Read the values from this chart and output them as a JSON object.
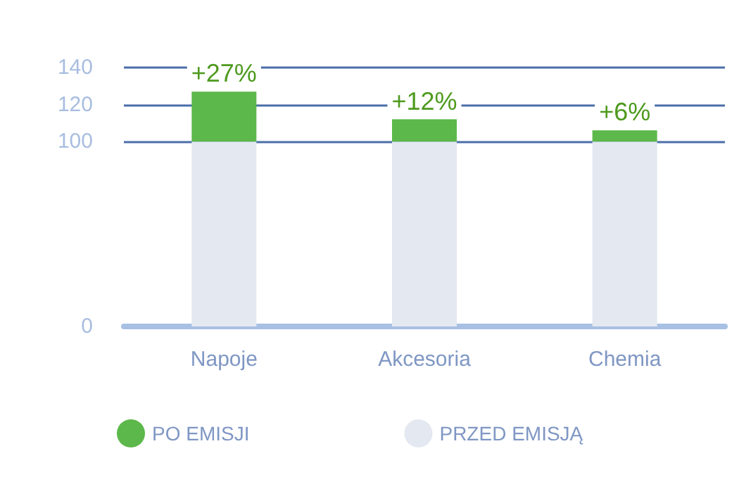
{
  "chart_data": {
    "type": "bar",
    "stacked": true,
    "categories": [
      "Napoje",
      "Akcesoria",
      "Chemia"
    ],
    "series": [
      {
        "name": "PRZED EMISJĄ",
        "color": "#e4e8f0",
        "values": [
          100,
          100,
          100
        ]
      },
      {
        "name": "PO EMISJI",
        "color": "#5cb84a",
        "values": [
          27,
          12,
          6
        ],
        "value_labels": [
          "+27%",
          "+12%",
          "+6%"
        ]
      }
    ],
    "ylim": [
      0,
      140
    ],
    "yticks": [
      0,
      100,
      120,
      140
    ],
    "grid": "y",
    "legend": "bottom"
  }
}
